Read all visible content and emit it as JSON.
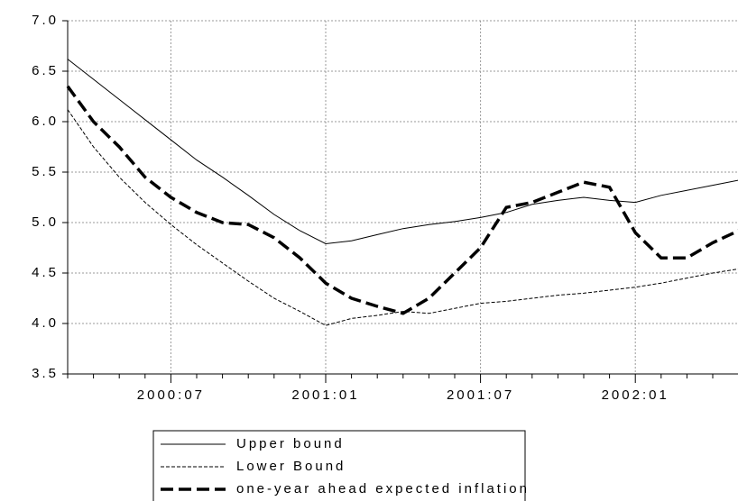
{
  "chart_data": {
    "type": "line",
    "categories": [
      null,
      null,
      null,
      null,
      "2000:07",
      null,
      null,
      null,
      null,
      null,
      "2001:01",
      null,
      null,
      null,
      null,
      null,
      "2001:07",
      null,
      null,
      null,
      null,
      null,
      "2002:01",
      null,
      null,
      null,
      null
    ],
    "series": [
      {
        "name": "Upper bound",
        "color": "#000000",
        "line_style": "solid",
        "values": [
          6.62,
          6.42,
          6.22,
          6.02,
          5.82,
          5.62,
          5.45,
          5.27,
          5.08,
          4.92,
          4.79,
          4.82,
          4.88,
          4.94,
          4.98,
          5.01,
          5.05,
          5.1,
          5.18,
          5.22,
          5.25,
          5.22,
          5.2,
          5.27,
          5.32,
          5.37,
          5.42
        ]
      },
      {
        "name": "Lower Bound",
        "color": "#000000",
        "line_style": "dashed",
        "values": [
          6.12,
          5.75,
          5.45,
          5.2,
          4.98,
          4.78,
          4.6,
          4.42,
          4.25,
          4.12,
          3.98,
          4.05,
          4.08,
          4.12,
          4.1,
          4.15,
          4.2,
          4.22,
          4.25,
          4.28,
          4.3,
          4.33,
          4.36,
          4.4,
          4.45,
          4.5,
          4.54
        ]
      },
      {
        "name": "one-year ahead expected inflation",
        "color": "#000000",
        "line_style": "thick-dashed",
        "values": [
          6.35,
          6.0,
          5.75,
          5.45,
          5.25,
          5.1,
          5.0,
          4.98,
          4.85,
          4.65,
          4.4,
          4.25,
          4.17,
          4.1,
          4.25,
          4.5,
          4.75,
          5.15,
          5.2,
          5.3,
          5.4,
          5.35,
          4.9,
          4.65,
          4.65,
          4.8,
          4.92
        ]
      }
    ],
    "ylim": [
      3.5,
      7.0
    ],
    "yticks": [
      {
        "value": 3.5,
        "label": "3.5"
      },
      {
        "value": 4,
        "label": "4.0"
      },
      {
        "value": 4.5,
        "label": "4.5"
      },
      {
        "value": 5,
        "label": "5.0"
      },
      {
        "value": 5.5,
        "label": "5.5"
      },
      {
        "value": 6,
        "label": "6.0"
      },
      {
        "value": 6.5,
        "label": "6.5"
      },
      {
        "value": 7,
        "label": "7.0"
      }
    ],
    "grid": true,
    "legend": "bottom"
  }
}
